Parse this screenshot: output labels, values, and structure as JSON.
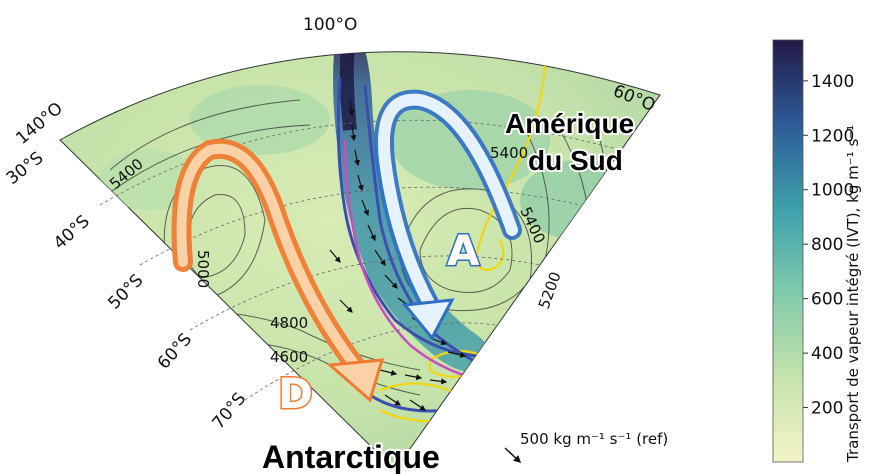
{
  "map": {
    "longitude_labels": [
      "100°O",
      "60°O",
      "140°O"
    ],
    "latitude_labels": [
      "30°S",
      "40°S",
      "50°S",
      "60°S",
      "70°S"
    ],
    "contour_labels": [
      "5400",
      "5000",
      "4800",
      "4600",
      "5400",
      "5200",
      "5400"
    ],
    "region_labels": {
      "south_america_line1": "Amérique",
      "south_america_line2": "du Sud",
      "antarctica": "Antarctique"
    },
    "pressure_markers": {
      "anticyclone": "A",
      "depression": "D"
    },
    "reference_vector": "500 kg m⁻¹ s⁻¹ (ref)",
    "colors": {
      "anticyclone_arrow": "#2f6fc6",
      "depression_arrow": "#f07b32",
      "coastline": "#f2d60f",
      "river_contour_blue": "#3a4fb0",
      "river_contour_magenta": "#c64fc0"
    }
  },
  "colorbar": {
    "title": "Transport de vapeur intégré (IVT), kg m⁻¹ s⁻¹",
    "ticks": [
      "1400",
      "1200",
      "1000",
      "800",
      "600",
      "400",
      "200"
    ],
    "tick_values": [
      1400,
      1200,
      1000,
      800,
      600,
      400,
      200
    ],
    "range": [
      0,
      1550
    ],
    "colormap": "viridis-like (pale yellow → teal → dark navy)"
  }
}
